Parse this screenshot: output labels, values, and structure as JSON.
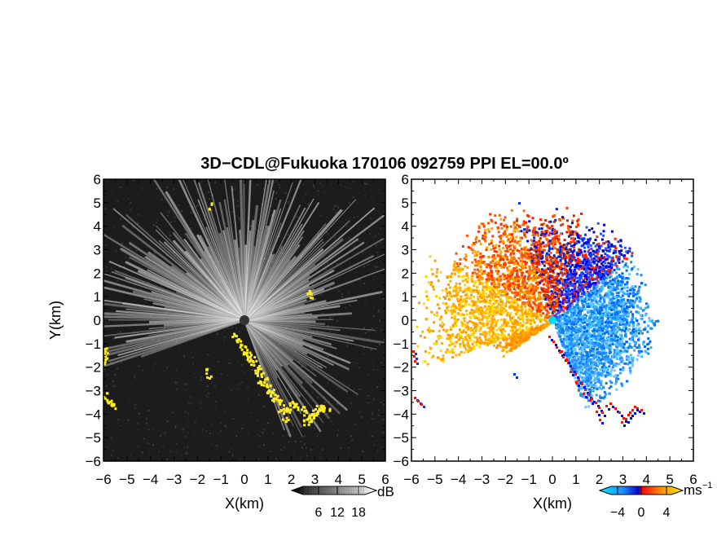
{
  "title": "3D−CDL@Fukuoka 170106 092759 PPI EL=00.0º",
  "chart_data": [
    {
      "type": "heatmap",
      "panel": "reflectivity",
      "xlabel": "X(km)",
      "ylabel": "Y(km)",
      "xlim": [
        -6,
        6
      ],
      "ylim": [
        -6,
        6
      ],
      "xticks": [
        "−6",
        "−5",
        "−4",
        "−3",
        "−2",
        "−1",
        "0",
        "1",
        "2",
        "3",
        "4",
        "5",
        "6"
      ],
      "yticks": [
        "−6",
        "−5",
        "−4",
        "−3",
        "−2",
        "−1",
        "0",
        "1",
        "2",
        "3",
        "4",
        "5",
        "6"
      ],
      "colorbar": {
        "unit": "dB",
        "ticks": [
          "6",
          "12",
          "18"
        ],
        "colormap": "grayscale"
      },
      "highlight_color": "#ffee22",
      "background_color": "#1c1c1c"
    },
    {
      "type": "heatmap",
      "panel": "doppler-velocity",
      "xlabel": "X(km)",
      "xlim": [
        -6,
        6
      ],
      "ylim": [
        -6,
        6
      ],
      "xticks": [
        "−6",
        "−5",
        "−4",
        "−3",
        "−2",
        "−1",
        "0",
        "1",
        "2",
        "3",
        "4",
        "5",
        "6"
      ],
      "yticks": [
        "−6",
        "−5",
        "−4",
        "−3",
        "−2",
        "−1",
        "0",
        "1",
        "2",
        "3",
        "4",
        "5",
        "6"
      ],
      "colorbar": {
        "unit": "ms",
        "unit_exp": "−1",
        "ticks": [
          "−4",
          "0",
          "4"
        ],
        "colormap": "cyan-blue-red-orange-yellow"
      },
      "background_color": "#ffffff"
    }
  ]
}
